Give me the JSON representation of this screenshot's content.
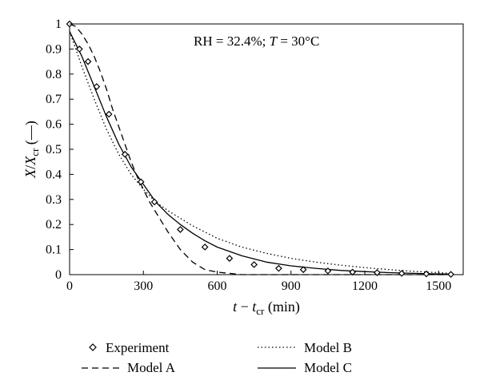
{
  "chart_data": {
    "type": "line",
    "annotation": {
      "prefix": "RH = 32.4%; ",
      "var": "T",
      "suffix": " = 30°C"
    },
    "xlabel": {
      "var": "t",
      "op": " − ",
      "sub_base": "t",
      "sub": "cr",
      "unit": " (min)"
    },
    "ylabel": {
      "var": "X",
      "slash": "/",
      "sub_base": "X",
      "sub": "cr",
      "unit": " (—)"
    },
    "xlim": [
      0,
      1600
    ],
    "ylim": [
      0,
      1
    ],
    "xticks": [
      0,
      300,
      600,
      900,
      1200,
      1500
    ],
    "yticks": [
      0,
      0.1,
      0.2,
      0.3,
      0.4,
      0.5,
      0.6,
      0.7,
      0.8,
      0.9,
      1
    ],
    "grid": false,
    "legend_position": "bottom",
    "series": [
      {
        "name": "Experiment",
        "style": "diamond-markers",
        "x": [
          0,
          40,
          75,
          110,
          160,
          225,
          290,
          345,
          450,
          550,
          650,
          750,
          850,
          950,
          1050,
          1150,
          1250,
          1350,
          1450,
          1550
        ],
        "y": [
          1.0,
          0.9,
          0.85,
          0.75,
          0.64,
          0.48,
          0.37,
          0.29,
          0.18,
          0.11,
          0.065,
          0.04,
          0.025,
          0.02,
          0.015,
          0.01,
          0.008,
          0.005,
          0.003,
          0.001
        ]
      },
      {
        "name": "Model A",
        "style": "dashed",
        "x": [
          0,
          25,
          50,
          75,
          100,
          125,
          150,
          175,
          200,
          225,
          250,
          275,
          300,
          325,
          350,
          400,
          450,
          500,
          550,
          600,
          650,
          700,
          800,
          1000,
          1200,
          1400,
          1550
        ],
        "y": [
          1.0,
          0.99,
          0.96,
          0.92,
          0.87,
          0.81,
          0.74,
          0.66,
          0.59,
          0.52,
          0.45,
          0.39,
          0.34,
          0.29,
          0.25,
          0.17,
          0.1,
          0.05,
          0.02,
          0.01,
          0.005,
          0.0,
          0.0,
          0.0,
          0.0,
          0.0,
          0.0
        ]
      },
      {
        "name": "Model B",
        "style": "dotted",
        "x": [
          0,
          50,
          100,
          150,
          200,
          250,
          300,
          350,
          400,
          450,
          500,
          550,
          600,
          700,
          800,
          900,
          1000,
          1100,
          1200,
          1300,
          1400,
          1500,
          1550
        ],
        "y": [
          0.97,
          0.83,
          0.7,
          0.58,
          0.48,
          0.4,
          0.34,
          0.29,
          0.255,
          0.225,
          0.195,
          0.17,
          0.145,
          0.11,
          0.085,
          0.065,
          0.05,
          0.038,
          0.028,
          0.02,
          0.013,
          0.008,
          0.005
        ]
      },
      {
        "name": "Model C",
        "style": "solid",
        "x": [
          0,
          50,
          100,
          150,
          200,
          250,
          300,
          350,
          400,
          450,
          500,
          550,
          600,
          700,
          800,
          900,
          1000,
          1100,
          1200,
          1300,
          1400,
          1500,
          1550
        ],
        "y": [
          0.97,
          0.87,
          0.75,
          0.63,
          0.52,
          0.43,
          0.36,
          0.29,
          0.24,
          0.2,
          0.165,
          0.135,
          0.11,
          0.075,
          0.05,
          0.035,
          0.025,
          0.017,
          0.012,
          0.008,
          0.005,
          0.003,
          0.002
        ]
      }
    ]
  }
}
